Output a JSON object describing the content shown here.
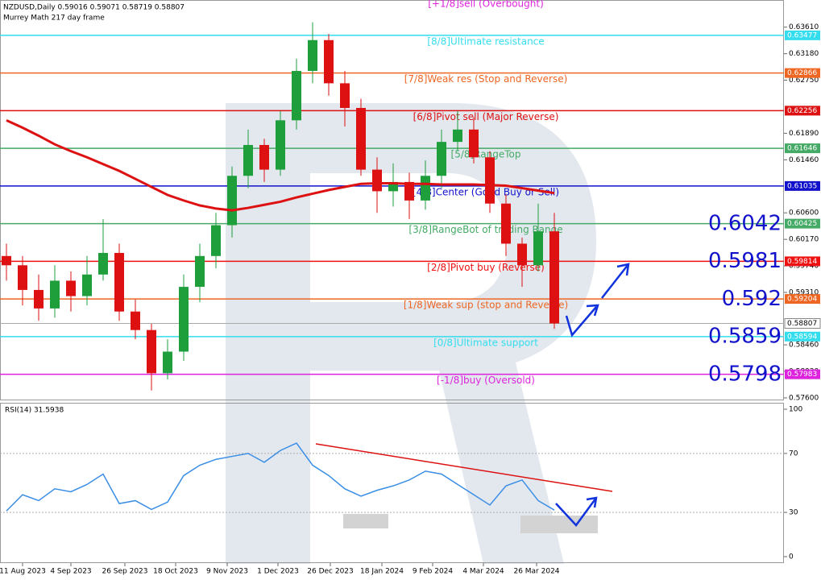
{
  "chart_data": {
    "type": "candlestick",
    "header": "NZDUSD,Daily  0.59016 0.59071 0.58719 0.58807",
    "indicator": "Murrey Math 217 day frame",
    "x": [
      2,
      7,
      12,
      17,
      22,
      27,
      32,
      37,
      42,
      47,
      52,
      57,
      62,
      67,
      72,
      77,
      82,
      87,
      92,
      97,
      102,
      107,
      112,
      117,
      122,
      127,
      132,
      137,
      142,
      147,
      152,
      157,
      162,
      167,
      172
    ],
    "xlim": [
      0,
      243.25
    ],
    "xticks": [
      {
        "value": 7,
        "label": "11 Aug 2023"
      },
      {
        "value": 22,
        "label": "4 Sep 2023"
      },
      {
        "value": 38.75,
        "label": "26 Sep 2023"
      },
      {
        "value": 54.5,
        "label": "18 Oct 2023"
      },
      {
        "value": 70.5,
        "label": "9 Nov 2023"
      },
      {
        "value": 86.25,
        "label": "1 Dec 2023"
      },
      {
        "value": 102.5,
        "label": "26 Dec 2023"
      },
      {
        "value": 118.5,
        "label": "18 Jan 2024"
      },
      {
        "value": 134.25,
        "label": "9 Feb 2024"
      },
      {
        "value": 150,
        "label": "4 Mar 2024"
      },
      {
        "value": 166.5,
        "label": "26 Mar 2024"
      }
    ],
    "open": [
      0.599,
      0.5975,
      0.5935,
      0.5905,
      0.595,
      0.5925,
      0.596,
      0.5995,
      0.59,
      0.587,
      0.58,
      0.5835,
      0.594,
      0.599,
      0.604,
      0.612,
      0.617,
      0.613,
      0.621,
      0.629,
      0.634,
      0.627,
      0.623,
      0.613,
      0.6095,
      0.611,
      0.608,
      0.612,
      0.6175,
      0.6195,
      0.615,
      0.6075,
      0.601,
      0.5975,
      0.603
    ],
    "high": [
      0.601,
      0.599,
      0.596,
      0.5975,
      0.5965,
      0.599,
      0.605,
      0.601,
      0.592,
      0.588,
      0.5855,
      0.596,
      0.601,
      0.606,
      0.6135,
      0.6195,
      0.618,
      0.6225,
      0.631,
      0.6369,
      0.635,
      0.629,
      0.6245,
      0.615,
      0.614,
      0.6125,
      0.6145,
      0.6195,
      0.6225,
      0.6215,
      0.616,
      0.609,
      0.602,
      0.6075,
      0.606
    ],
    "low": [
      0.595,
      0.591,
      0.5885,
      0.589,
      0.59,
      0.591,
      0.595,
      0.5885,
      0.5855,
      0.5772,
      0.579,
      0.582,
      0.5915,
      0.597,
      0.602,
      0.61,
      0.611,
      0.612,
      0.6195,
      0.627,
      0.625,
      0.62,
      0.612,
      0.606,
      0.607,
      0.605,
      0.6065,
      0.61,
      0.616,
      0.614,
      0.606,
      0.599,
      0.594,
      0.5965,
      0.58719
    ],
    "close": [
      0.5975,
      0.5935,
      0.5905,
      0.595,
      0.5925,
      0.596,
      0.5995,
      0.59,
      0.587,
      0.58,
      0.5835,
      0.594,
      0.599,
      0.604,
      0.612,
      0.617,
      0.613,
      0.621,
      0.629,
      0.634,
      0.627,
      0.623,
      0.613,
      0.6095,
      0.611,
      0.608,
      0.612,
      0.6175,
      0.6195,
      0.615,
      0.6075,
      0.601,
      0.5975,
      0.603,
      0.58807
    ],
    "up_color": "#1f9e3c",
    "down_color": "#dd1111",
    "ma": {
      "color": "#dd1111",
      "values": [
        0.621,
        0.6198,
        0.6185,
        0.6171,
        0.616,
        0.615,
        0.6139,
        0.6128,
        0.6115,
        0.6102,
        0.6089,
        0.608,
        0.6072,
        0.6067,
        0.6064,
        0.6068,
        0.6073,
        0.6078,
        0.6085,
        0.6091,
        0.6097,
        0.6102,
        0.6107,
        0.6108,
        0.6108,
        0.6107,
        0.6107,
        0.6106,
        0.6106,
        0.6106,
        0.6105,
        0.6104,
        0.61,
        0.6096,
        0.6092
      ]
    },
    "ylim": [
      0.5756,
      0.6405
    ],
    "yticks": [
      {
        "value": 0.6361,
        "label": "0.63610"
      },
      {
        "value": 0.6318,
        "label": "0.63180"
      },
      {
        "value": 0.6275,
        "label": "0.62750"
      },
      {
        "value": 0.6189,
        "label": "0.61890"
      },
      {
        "value": 0.6146,
        "label": "0.61460"
      },
      {
        "value": 0.606,
        "label": "0.60600"
      },
      {
        "value": 0.6017,
        "label": "0.60170"
      },
      {
        "value": 0.5974,
        "label": "0.59740"
      },
      {
        "value": 0.5931,
        "label": "0.59310"
      },
      {
        "value": 0.5846,
        "label": "0.58460"
      },
      {
        "value": 0.5803,
        "label": "0.58030"
      },
      {
        "value": 0.576,
        "label": "0.57600"
      }
    ],
    "levels": [
      {
        "label": "[+1/8]sell (Overbought)",
        "value": 0.64087,
        "color": "#dd22dd"
      },
      {
        "label": "[8/8]Ultimate resistance",
        "value": 0.63477,
        "color": "#33ddee"
      },
      {
        "label": "[7/8]Weak res (Stop and Reverse)",
        "value": 0.62866,
        "color": "#ee6622"
      },
      {
        "label": "[6/8]Pivot sell (Major Reverse)",
        "value": 0.62256,
        "color": "#dd1111"
      },
      {
        "label": "[5/8]RangeTop",
        "value": 0.61646,
        "color": "#44aa66"
      },
      {
        "label": "[4/8]Center (Good Buy or Sell)",
        "value": 0.61035,
        "color": "#1111cc"
      },
      {
        "label": "[3/8]RangeBot of trading Range",
        "value": 0.60425,
        "color": "#44aa66"
      },
      {
        "label": "[2/8]Pivot buy (Reverse)",
        "value": 0.59814,
        "color": "#ee1111"
      },
      {
        "label": "[1/8]Weak sup (stop and Reverse)",
        "value": 0.59204,
        "color": "#ee6622"
      },
      {
        "label": "[0/8]Ultimate support",
        "value": 0.58594,
        "color": "#33ddee"
      },
      {
        "label": "[-1/8]buy (Oversold)",
        "value": 0.57983,
        "color": "#dd22dd"
      }
    ],
    "big_labels": [
      0.6042,
      0.5981,
      0.592,
      0.5859,
      0.5798
    ],
    "last_price": 0.58807,
    "rsi": {
      "title": "RSI(14) 31.5938",
      "color": "#3a8ee6",
      "values": [
        31,
        42,
        38,
        46,
        44,
        49,
        56,
        36,
        38,
        32,
        37,
        55,
        62,
        66,
        68,
        70,
        64,
        72,
        77,
        62,
        55,
        46,
        41,
        45,
        48,
        52,
        58,
        56,
        49,
        42,
        35,
        48,
        52,
        38,
        31.5938
      ],
      "ylim": [
        0,
        100
      ],
      "yticks": [
        100,
        70,
        30,
        0
      ],
      "levels": [
        70,
        30
      ]
    }
  }
}
